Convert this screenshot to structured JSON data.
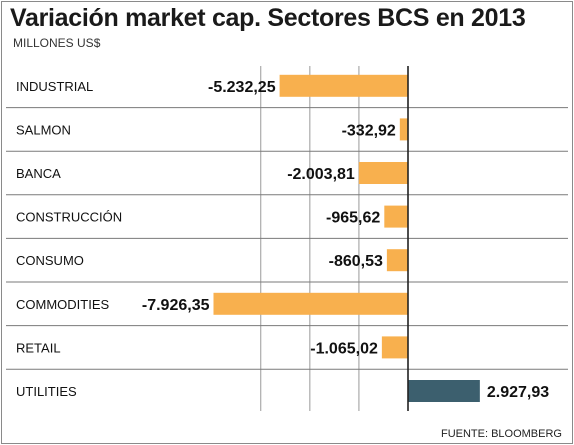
{
  "chart_data": {
    "type": "bar",
    "orientation": "horizontal",
    "title": "Variación market cap. Sectores BCS en 2013",
    "subtitle": "MILLONES US$",
    "source": "FUENTE: BLOOMBERG",
    "categories": [
      "INDUSTRIAL",
      "SALMON",
      "BANCA",
      "CONSTRUCCIÓN",
      "CONSUMO",
      "COMMODITIES",
      "RETAIL",
      "UTILITIES"
    ],
    "values": [
      -5232.25,
      -332.92,
      -2003.81,
      -965.62,
      -860.53,
      -7926.35,
      -1065.02,
      2927.93
    ],
    "value_labels": [
      "-5.232,25",
      "-332,92",
      "-2.003,81",
      "-965,62",
      "-860,53",
      "-7.926,35",
      "-1.065,02",
      "2.927,93"
    ],
    "xlim": [
      -10000,
      3000
    ],
    "grid": true,
    "colors": {
      "negative": "#f8b04e",
      "positive": "#3c5f6e",
      "grid": "#9a9a9a",
      "row_divider": "#7a7a7a",
      "text": "#111111"
    }
  }
}
